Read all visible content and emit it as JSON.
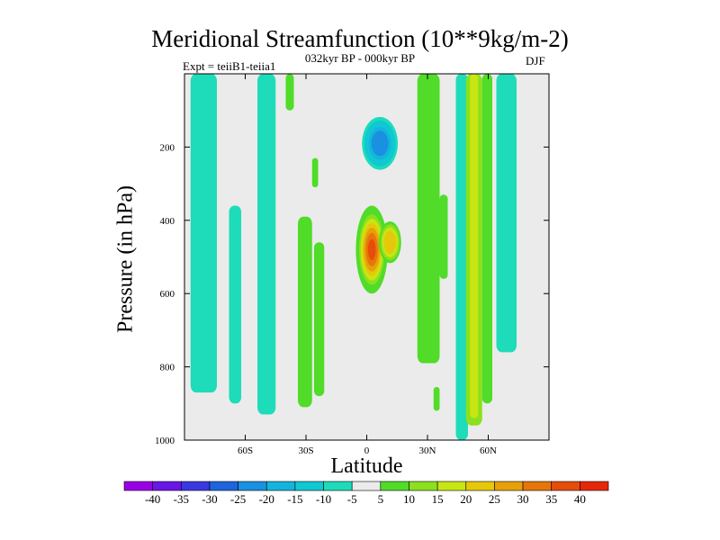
{
  "chart_data": {
    "type": "heatmap",
    "title": "Meridional Streamfunction (10**9kg/m-2)",
    "subtitle": "032kyr BP - 000kyr BP",
    "left_string": "Expt = teiiB1-teiia1",
    "right_string": "DJF",
    "xlabel": "Latitude",
    "ylabel": "Pressure (in hPa)",
    "xlim": [
      -90,
      90
    ],
    "ylim": [
      1000,
      0
    ],
    "x_ticks": [
      -60,
      -30,
      0,
      30,
      60
    ],
    "x_tick_labels": [
      "60S",
      "30S",
      "0",
      "30N",
      "60N"
    ],
    "y_ticks": [
      200,
      400,
      600,
      800,
      1000
    ],
    "y_tick_labels": [
      "200",
      "400",
      "600",
      "800",
      "1000"
    ],
    "colorbar": {
      "levels": [
        -40,
        -35,
        -30,
        -25,
        -20,
        -15,
        -10,
        -5,
        5,
        10,
        15,
        20,
        25,
        30,
        35,
        40
      ],
      "labels": [
        "-40",
        "-35",
        "-30",
        "-25",
        "-20",
        "-15",
        "-10",
        "-5",
        "5",
        "10",
        "15",
        "20",
        "25",
        "30",
        "35",
        "40"
      ],
      "colors": [
        "#9a00e6",
        "#6a16e6",
        "#3a38e0",
        "#1e64dc",
        "#1a90e0",
        "#14b4dc",
        "#10c8d2",
        "#1edcba",
        "#ebebeb",
        "#50dc28",
        "#8ce01e",
        "#c8e614",
        "#e6c80a",
        "#e6a00a",
        "#e6760a",
        "#e64c0a",
        "#e6280a"
      ],
      "neutral_color": "#ebebeb"
    },
    "features": [
      {
        "shape": "band",
        "xlim": [
          -87,
          -74
        ],
        "pmin": 0,
        "pmax": 870,
        "value": -7.5
      },
      {
        "shape": "band",
        "xlim": [
          -68,
          -62
        ],
        "pmin": 360,
        "pmax": 900,
        "value": -7.5
      },
      {
        "shape": "band",
        "xlim": [
          -54,
          -45
        ],
        "pmin": 0,
        "pmax": 930,
        "value": -7.5
      },
      {
        "shape": "band",
        "xlim": [
          -40,
          -36
        ],
        "pmin": 0,
        "pmax": 100,
        "value": 7.5
      },
      {
        "shape": "band",
        "xlim": [
          -34,
          -27
        ],
        "pmin": 390,
        "pmax": 910,
        "value": 7.5
      },
      {
        "shape": "band",
        "xlim": [
          -27,
          -24
        ],
        "pmin": 230,
        "pmax": 310,
        "value": 7.5
      },
      {
        "shape": "band",
        "xlim": [
          -26,
          -21
        ],
        "pmin": 460,
        "pmax": 880,
        "value": 7.5
      },
      {
        "shape": "band",
        "xlim": [
          25,
          36
        ],
        "pmin": 0,
        "pmax": 790,
        "value": 7.5
      },
      {
        "shape": "band",
        "xlim": [
          36,
          40
        ],
        "pmin": 330,
        "pmax": 560,
        "value": 7.5
      },
      {
        "shape": "band",
        "xlim": [
          33,
          36
        ],
        "pmin": 855,
        "pmax": 920,
        "value": 7.5
      },
      {
        "shape": "band",
        "xlim": [
          44,
          50
        ],
        "pmin": 0,
        "pmax": 1000,
        "value": -7.5
      },
      {
        "shape": "band",
        "xlim": [
          49,
          57
        ],
        "pmin": 0,
        "pmax": 960,
        "value": 12.5
      },
      {
        "shape": "band",
        "xlim": [
          51,
          55
        ],
        "pmin": 0,
        "pmax": 940,
        "value": 17.5
      },
      {
        "shape": "band",
        "xlim": [
          57,
          62
        ],
        "pmin": 0,
        "pmax": 900,
        "value": 7.5
      },
      {
        "shape": "band",
        "xlim": [
          64,
          74
        ],
        "pmin": 0,
        "pmax": 760,
        "value": -7.5
      },
      {
        "shape": "cell",
        "lat": [
          -4,
          17
        ],
        "p": [
          280,
          100
        ],
        "radii": [
          0.8,
          0.8,
          0.7,
          0.6,
          0.5,
          0.38
        ],
        "value": -20
      },
      {
        "shape": "cell",
        "lat": [
          -5,
          10
        ],
        "p": [
          600,
          360
        ],
        "radii": [
          1.0,
          0.9,
          0.8,
          0.7,
          0.6,
          0.5,
          0.38,
          0.24
        ],
        "value": 40
      },
      {
        "shape": "cell",
        "lat": [
          6,
          17
        ],
        "p": [
          520,
          400
        ],
        "radii": [
          0.95,
          0.82,
          0.68,
          0.52
        ],
        "value": 25
      }
    ]
  }
}
